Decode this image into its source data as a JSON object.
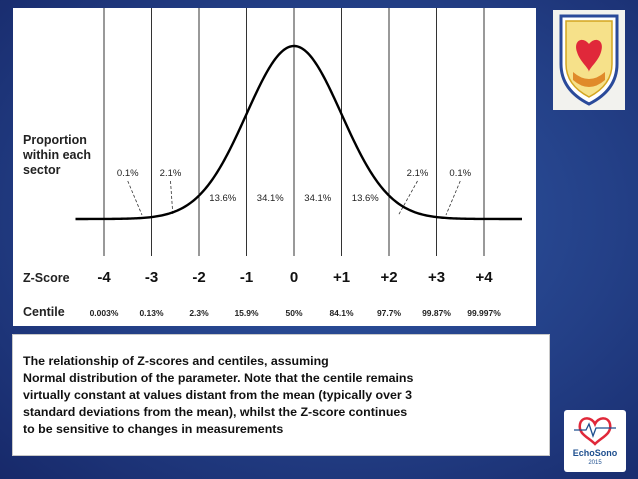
{
  "chart_data": {
    "type": "line",
    "title": "",
    "xlabel": "Z-Score",
    "ylabel": "",
    "xlim": [
      -4.5,
      4.5
    ],
    "grid": true,
    "y_title": "Proportion\nwithin each\nsector",
    "z_label": "Z-Score",
    "centile_label": "Centile",
    "gridlines_at": [
      -4,
      -3,
      -2,
      -1,
      0,
      1,
      2,
      3,
      4
    ],
    "z_scores": [
      -4,
      -3,
      -2,
      -1,
      0,
      1,
      2,
      3,
      4
    ],
    "z_labels": [
      "-4",
      "-3",
      "-2",
      "-1",
      "0",
      "+1",
      "+2",
      "+3",
      "+4"
    ],
    "centiles": [
      "0.003%",
      "0.13%",
      "2.3%",
      "15.9%",
      "50%",
      "84.1%",
      "97.7%",
      "99.87%",
      "99.997%"
    ],
    "sector_proportions": [
      {
        "range": [
          -2,
          -1
        ],
        "label": "13.6%"
      },
      {
        "range": [
          -1,
          0
        ],
        "label": "34.1%"
      },
      {
        "range": [
          0,
          1
        ],
        "label": "34.1%"
      },
      {
        "range": [
          1,
          2
        ],
        "label": "13.6%"
      }
    ],
    "tail_annotations": [
      {
        "label": "0.1%",
        "sector": [
          -4,
          -3
        ]
      },
      {
        "label": "2.1%",
        "sector": [
          -3,
          -2
        ]
      },
      {
        "label": "2.1%",
        "sector": [
          2,
          3
        ]
      },
      {
        "label": "0.1%",
        "sector": [
          3,
          4
        ]
      }
    ]
  },
  "caption": "The relationship of Z-scores and centiles, assuming\nNormal distribution of the parameter. Note that the centile remains\nvirtually constant at values distant from the mean (typically over 3\nstandard deviations from the mean), whilst the Z-score continues\nto be sensitive to changes in measurements",
  "logos": {
    "right_name": "EchoSono",
    "right_year": "2015"
  },
  "colors": {
    "background": "#233f86",
    "curve": "#000000",
    "gridline": "#333333",
    "heart": "#e0283a",
    "logo_blue": "#1e4f8f"
  }
}
